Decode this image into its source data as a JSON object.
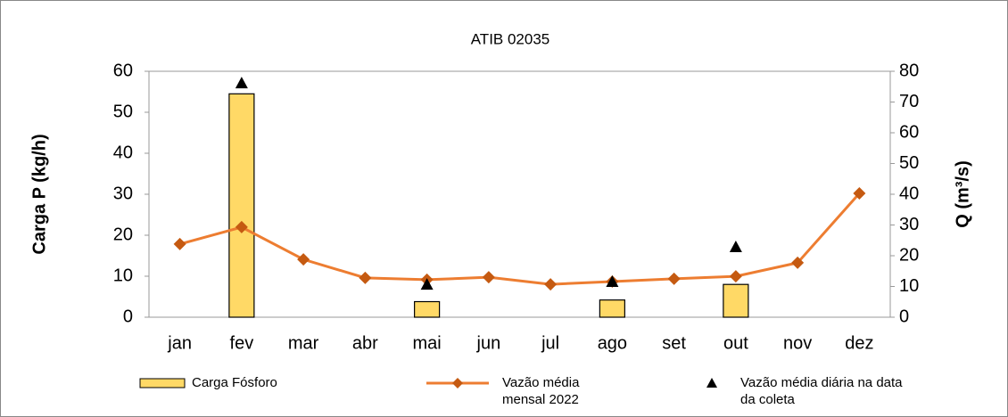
{
  "chart_data": {
    "type": "bar",
    "title": "ATIB 02035",
    "ylabel": "Carga P (kg/h)",
    "y2label": "Q (m³/s)",
    "categories": [
      "jan",
      "fev",
      "mar",
      "abr",
      "mai",
      "jun",
      "jul",
      "ago",
      "set",
      "out",
      "nov",
      "dez"
    ],
    "ylim": [
      0,
      60
    ],
    "yticks": [
      0,
      10,
      20,
      30,
      40,
      50,
      60
    ],
    "y2lim": [
      0,
      80
    ],
    "y2ticks": [
      0,
      10,
      20,
      30,
      40,
      50,
      60,
      70,
      80
    ],
    "series": [
      {
        "name": "Carga Fósforo",
        "type": "bar",
        "color": "#ffd966",
        "values": [
          null,
          54.5,
          null,
          null,
          3.8,
          null,
          null,
          4.2,
          null,
          8,
          null,
          null
        ]
      },
      {
        "name": "Vazão média mensal 2022",
        "type": "line",
        "axis": "y2",
        "color": "#ed7d31",
        "marker_color": "#c55a11",
        "values": [
          23.8,
          29.3,
          18.8,
          12.8,
          12.2,
          13,
          10.7,
          11.6,
          12.5,
          13.3,
          17.7,
          40.3
        ]
      },
      {
        "name": "Vazão média diária na data da coleta",
        "type": "scatter",
        "axis": "y2",
        "color": "#000000",
        "values": [
          null,
          76.2,
          null,
          null,
          10.7,
          null,
          null,
          11.6,
          null,
          22.9,
          null,
          null
        ]
      }
    ]
  }
}
